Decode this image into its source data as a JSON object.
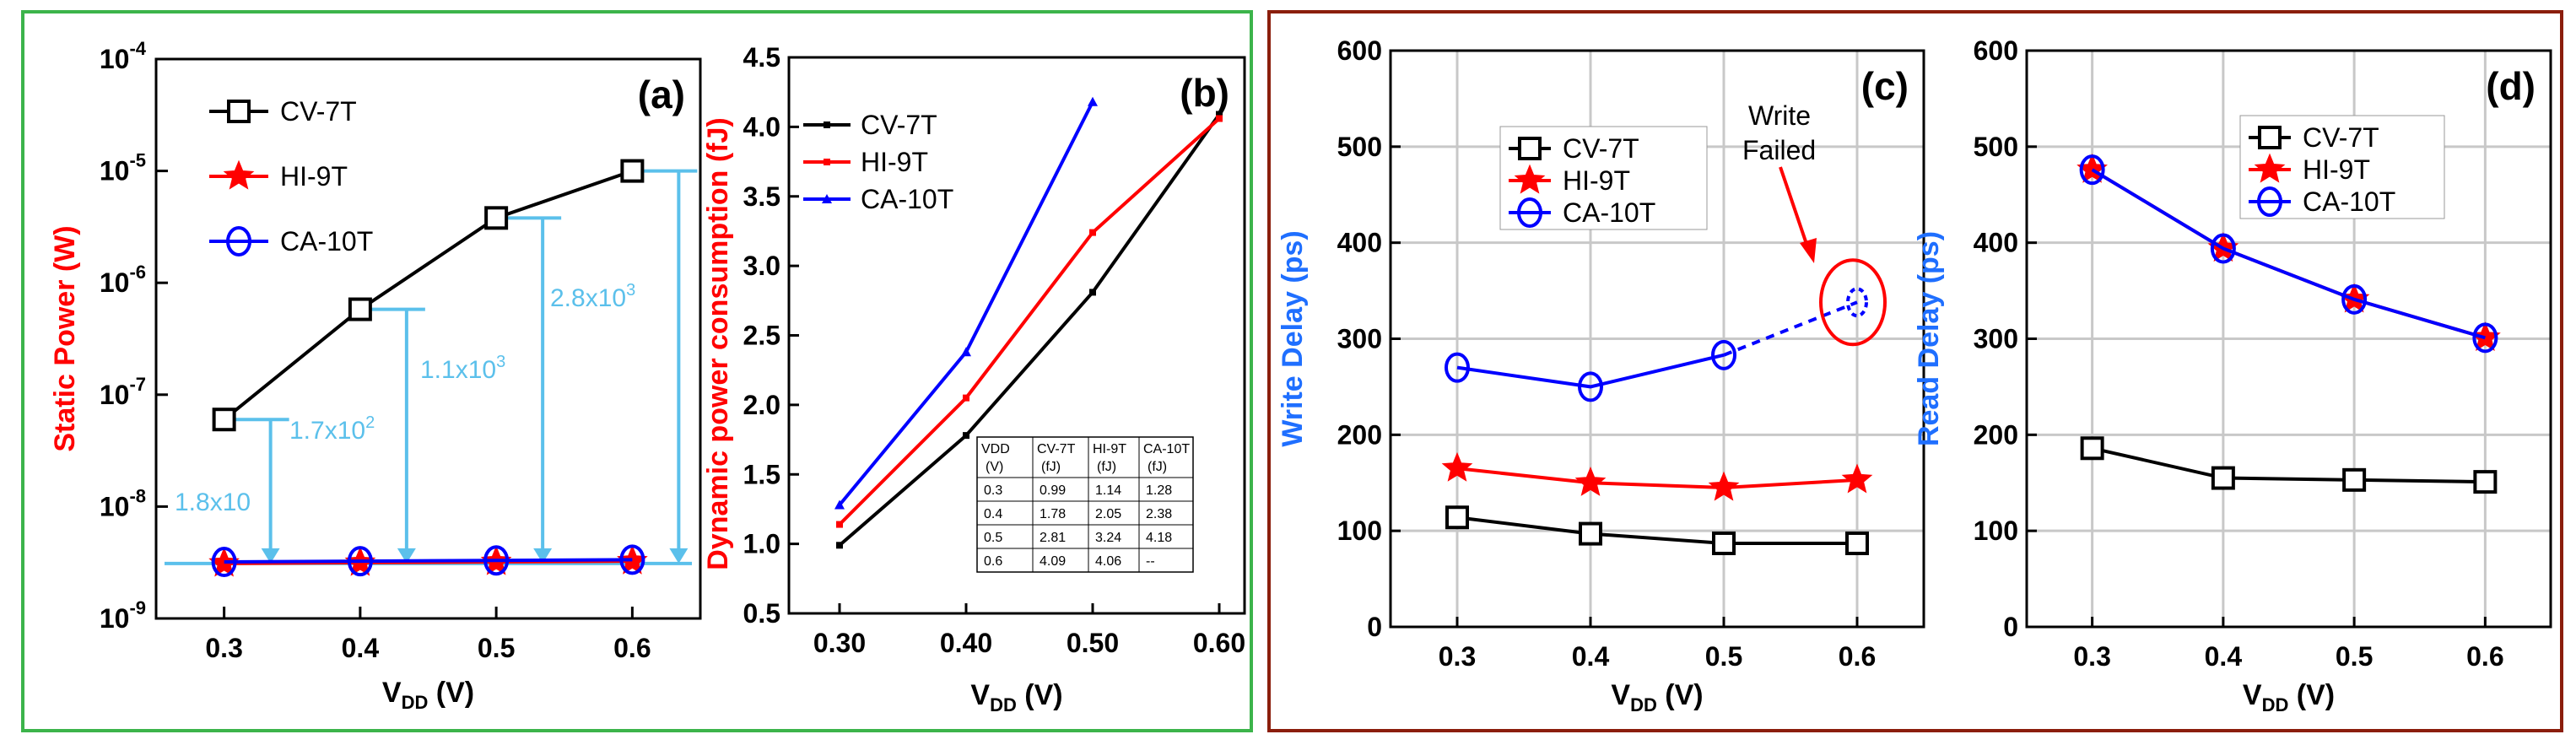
{
  "chart_data": [
    {
      "panel": "(a)",
      "type": "line",
      "yscale": "log",
      "xlabel_main": "V",
      "xlabel_sub": "DD",
      "xlabel_unit": " (V)",
      "ylabel": "Static Power (W)",
      "x": [
        0.3,
        0.4,
        0.5,
        0.6
      ],
      "xlim": [
        0.25,
        0.65
      ],
      "ylim_exp": [
        -9,
        -4
      ],
      "ytick_exps": [
        "-9",
        "-8",
        "-7",
        "-6",
        "-5",
        "-4"
      ],
      "ytick_base": "10",
      "series": [
        {
          "name": "CV-7T",
          "color": "#000000",
          "marker": "square",
          "values": [
            6e-08,
            5.8e-07,
            3.8e-06,
            1e-05
          ]
        },
        {
          "name": "HI-9T",
          "color": "#ff0000",
          "marker": "star",
          "values": [
            3.1e-09,
            3.15e-09,
            3.2e-09,
            3.25e-09
          ]
        },
        {
          "name": "CA-10T",
          "color": "#0000ff",
          "marker": "circle",
          "values": [
            3.2e-09,
            3.25e-09,
            3.3e-09,
            3.35e-09
          ]
        }
      ],
      "annotations": [
        {
          "base": "1.8x10",
          "exp": ""
        },
        {
          "base": "1.7x10",
          "exp": "2"
        },
        {
          "base": "1.1x10",
          "exp": "3"
        },
        {
          "base": "2.8x10",
          "exp": "3"
        }
      ]
    },
    {
      "panel": "(b)",
      "type": "line",
      "xlabel_main": "V",
      "xlabel_sub": "DD",
      "xlabel_unit": " (V)",
      "ylabel": "Dynamic power consumption (fJ)",
      "xticks": [
        "0.30",
        "0.40",
        "0.50",
        "0.60"
      ],
      "yticks": [
        "0.5",
        "1.0",
        "1.5",
        "2.0",
        "2.5",
        "3.0",
        "3.5",
        "4.0",
        "4.5"
      ],
      "xlim": [
        0.26,
        0.62
      ],
      "ylim": [
        0.5,
        4.5
      ],
      "series": [
        {
          "name": "CV-7T",
          "color": "#000000",
          "x": [
            0.3,
            0.4,
            0.5,
            0.6
          ],
          "values": [
            0.99,
            1.78,
            2.81,
            4.09
          ]
        },
        {
          "name": "HI-9T",
          "color": "#ff0000",
          "x": [
            0.3,
            0.4,
            0.5,
            0.6
          ],
          "values": [
            1.14,
            2.05,
            3.24,
            4.06
          ]
        },
        {
          "name": "CA-10T",
          "color": "#0000ff",
          "x": [
            0.3,
            0.4,
            0.5
          ],
          "values": [
            1.28,
            2.38,
            4.18
          ]
        }
      ],
      "table": {
        "header_top": [
          "VDD",
          "CV-7T",
          "HI-9T",
          "CA-10T"
        ],
        "header_bottom": [
          "(V)",
          "(fJ)",
          "(fJ)",
          "(fJ)"
        ],
        "rows": [
          [
            "0.3",
            "0.99",
            "1.14",
            "1.28"
          ],
          [
            "0.4",
            "1.78",
            "2.05",
            "2.38"
          ],
          [
            "0.5",
            "2.81",
            "3.24",
            "4.18"
          ],
          [
            "0.6",
            "4.09",
            "4.06",
            "--"
          ]
        ]
      }
    },
    {
      "panel": "(c)",
      "type": "line",
      "xlabel_main": "V",
      "xlabel_sub": "DD",
      "xlabel_unit": " (V)",
      "ylabel": "Write Delay (ps)",
      "xticks": [
        "0.3",
        "0.4",
        "0.5",
        "0.6"
      ],
      "yticks": [
        "0",
        "100",
        "200",
        "300",
        "400",
        "500",
        "600"
      ],
      "xlim": [
        0.25,
        0.65
      ],
      "ylim": [
        0,
        600
      ],
      "series": [
        {
          "name": "CV-7T",
          "color": "#000000",
          "marker": "square",
          "x": [
            0.3,
            0.4,
            0.5,
            0.6
          ],
          "values": [
            114,
            97,
            87,
            87
          ]
        },
        {
          "name": "HI-9T",
          "color": "#ff0000",
          "marker": "star",
          "x": [
            0.3,
            0.4,
            0.5,
            0.6
          ],
          "values": [
            165,
            150,
            145,
            153
          ]
        },
        {
          "name": "CA-10T",
          "color": "#0000ff",
          "marker": "circle",
          "x": [
            0.3,
            0.4,
            0.5,
            0.6
          ],
          "values": [
            270,
            250,
            283,
            338
          ]
        }
      ],
      "annotation": {
        "line1": "Write",
        "line2": "Failed",
        "color": "#ff0000"
      }
    },
    {
      "panel": "(d)",
      "type": "line",
      "xlabel_main": "V",
      "xlabel_sub": "DD",
      "xlabel_unit": " (V)",
      "ylabel": "Read Delay (ps)",
      "xticks": [
        "0.3",
        "0.4",
        "0.5",
        "0.6"
      ],
      "yticks": [
        "0",
        "100",
        "200",
        "300",
        "400",
        "500",
        "600"
      ],
      "xlim": [
        0.25,
        0.65
      ],
      "ylim": [
        0,
        600
      ],
      "series": [
        {
          "name": "CV-7T",
          "color": "#000000",
          "marker": "square",
          "x": [
            0.3,
            0.4,
            0.5,
            0.6
          ],
          "values": [
            186,
            155,
            153,
            151
          ]
        },
        {
          "name": "HI-9T",
          "color": "#ff0000",
          "marker": "star",
          "x": [
            0.3,
            0.4,
            0.5,
            0.6
          ],
          "values": [
            476,
            394,
            341,
            301
          ]
        },
        {
          "name": "CA-10T",
          "color": "#0000ff",
          "marker": "circle",
          "x": [
            0.3,
            0.4,
            0.5,
            0.6
          ],
          "values": [
            476,
            394,
            341,
            301
          ]
        }
      ]
    }
  ],
  "colors": {
    "left_frame": "#3cb44b",
    "right_frame": "#8b1e0c",
    "annotation": "#5bc0eb",
    "static_label": "#ff0000",
    "delay_label": "#1f6fff"
  }
}
